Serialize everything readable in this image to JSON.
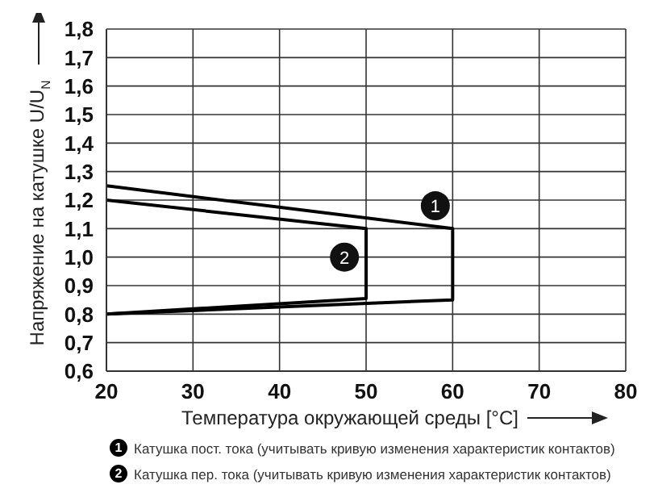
{
  "chart_data": {
    "type": "line",
    "xlabel": "Температура окружающей среды [°C]",
    "ylabel": "Напряжение на катушке U/U$_{N}$",
    "series": [
      {
        "name": "Катушка пост. тока (учитывать кривую изменения характеристик контактов)",
        "color": "#000000",
        "x": [
          20,
          60,
          60,
          20
        ],
        "values": [
          1.25,
          1.1,
          0.85,
          0.8
        ]
      },
      {
        "name": "Катушка пер. тока (учитывать кривую изменения характеристик контактов)",
        "color": "#000000",
        "x": [
          20,
          50,
          50,
          20
        ],
        "values": [
          1.2,
          1.1,
          0.855,
          0.8
        ]
      }
    ],
    "annotations": [
      {
        "text": "1",
        "x": 58,
        "y": 1.18
      },
      {
        "text": "2",
        "x": 47.5,
        "y": 1.0
      }
    ],
    "xlim": [
      20,
      80
    ],
    "xticks": [
      20,
      30,
      40,
      50,
      60,
      70,
      80
    ],
    "ylim": [
      0.6,
      1.8
    ],
    "yticks": [
      {
        "value": 0.6,
        "label": "0,6"
      },
      {
        "value": 0.7,
        "label": "0,7"
      },
      {
        "value": 0.8,
        "label": "0,8"
      },
      {
        "value": 0.9,
        "label": "0,9"
      },
      {
        "value": 1.0,
        "label": "1,0"
      },
      {
        "value": 1.1,
        "label": "1,1"
      },
      {
        "value": 1.2,
        "label": "1,2"
      },
      {
        "value": 1.3,
        "label": "1,3"
      },
      {
        "value": 1.4,
        "label": "1,4"
      },
      {
        "value": 1.5,
        "label": "1,5"
      },
      {
        "value": 1.6,
        "label": "1,6"
      },
      {
        "value": 1.7,
        "label": "1,7"
      },
      {
        "value": 1.8,
        "label": "1,8"
      }
    ],
    "grid": true,
    "legend": "bottom",
    "marker": "none",
    "line_style": "solid"
  }
}
